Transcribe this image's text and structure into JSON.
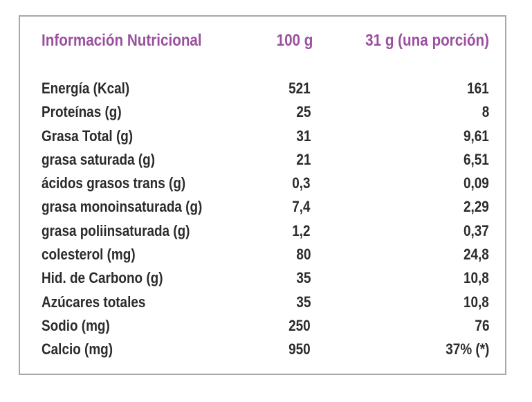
{
  "header": {
    "title": "Información Nutricional",
    "col_100g": "100 g",
    "col_portion": "31 g (una porción)"
  },
  "accent_color": "#9a4f9f",
  "rows": [
    {
      "label": "Energía (Kcal)",
      "per100": "521",
      "portion": "161"
    },
    {
      "label": "Proteínas (g)",
      "per100": "25",
      "portion": "8"
    },
    {
      "label": "Grasa Total (g)",
      "per100": "31",
      "portion": "9,61"
    },
    {
      "label": "grasa saturada (g)",
      "per100": "21",
      "portion": "6,51"
    },
    {
      "label": "ácidos grasos trans (g)",
      "per100": "0,3",
      "portion": "0,09"
    },
    {
      "label": "grasa monoinsaturada (g)",
      "per100": "7,4",
      "portion": "2,29"
    },
    {
      "label": "grasa poliinsaturada (g)",
      "per100": "1,2",
      "portion": "0,37"
    },
    {
      "label": "colesterol (mg)",
      "per100": "80",
      "portion": "24,8"
    },
    {
      "label": "Hid. de Carbono (g)",
      "per100": "35",
      "portion": "10,8"
    },
    {
      "label": "Azúcares totales",
      "per100": "35",
      "portion": "10,8"
    },
    {
      "label": "Sodio (mg)",
      "per100": "250",
      "portion": "76"
    },
    {
      "label": "Calcio (mg)",
      "per100": "950",
      "portion": "37% (*)"
    }
  ]
}
